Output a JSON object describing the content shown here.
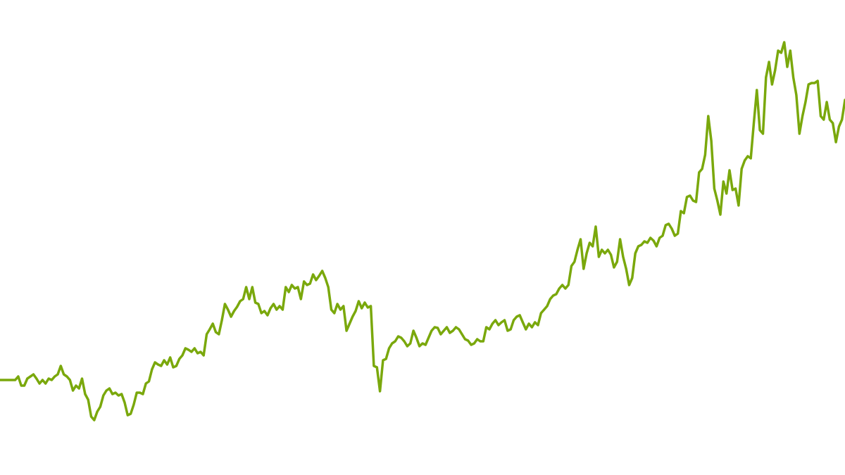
{
  "chart_data": {
    "type": "line",
    "title": "",
    "xlabel": "",
    "ylabel": "",
    "ylim": [
      0,
      135
    ],
    "grid": false,
    "axes_visible": false,
    "legend": "none",
    "series": [
      {
        "color": "#7aa80c",
        "values": [
          27,
          27,
          27,
          27,
          27,
          27,
          28,
          25.4,
          25.4,
          27.4,
          28,
          28.6,
          27.4,
          26,
          27,
          26,
          27.4,
          27,
          28,
          28.6,
          31,
          28.6,
          28,
          27,
          24,
          25.4,
          24.6,
          27.4,
          23,
          21.4,
          16.6,
          15.6,
          18,
          19.4,
          22.6,
          24,
          24.6,
          23,
          23.4,
          22.6,
          23,
          20.6,
          17,
          17.4,
          20,
          23.4,
          23.4,
          23,
          26,
          26.6,
          30,
          32,
          31.4,
          31,
          32.6,
          31.4,
          33.4,
          30.6,
          31,
          33,
          34,
          36,
          35.6,
          35,
          36,
          34.6,
          35,
          34,
          40,
          41.4,
          43,
          40.6,
          40,
          44,
          48.6,
          47,
          45,
          46.6,
          47.8,
          49.4,
          50,
          53.4,
          50,
          53.4,
          49,
          48.6,
          46,
          46.6,
          45.4,
          47.4,
          48.6,
          47,
          48,
          47,
          53.4,
          52,
          54,
          53,
          53.4,
          50,
          55,
          54,
          54.4,
          57,
          55.4,
          56.6,
          58,
          56,
          53.4,
          47,
          46,
          48.6,
          47,
          48,
          41,
          43,
          45,
          46.6,
          49.4,
          47.4,
          49,
          47.6,
          48,
          31,
          30.6,
          23.8,
          32.6,
          33,
          36,
          37.4,
          38,
          39.4,
          39,
          38,
          36.6,
          37.4,
          41,
          39,
          36.6,
          37.4,
          37,
          39,
          41,
          42,
          41.8,
          40,
          41,
          42,
          40.4,
          41,
          42,
          41.4,
          40,
          38.6,
          38.2,
          37,
          37.4,
          38.6,
          38,
          38,
          42,
          41.4,
          43,
          44,
          42.6,
          43.4,
          44,
          41,
          41.4,
          44,
          45,
          45.4,
          43.4,
          41.4,
          43,
          42,
          43.4,
          42.6,
          46,
          47,
          48,
          50,
          51,
          51.4,
          53,
          54,
          53,
          54,
          59.4,
          60.6,
          64,
          67,
          58.6,
          63,
          66,
          65,
          70.6,
          62,
          64,
          63,
          64,
          62.6,
          59,
          60.6,
          67,
          62,
          58.6,
          54,
          56,
          63,
          65,
          65.4,
          66.4,
          66,
          67.4,
          66.6,
          65,
          67.4,
          68,
          71,
          71.4,
          70,
          68,
          68.6,
          75,
          74.4,
          79,
          79.4,
          78,
          77.6,
          86,
          87,
          91,
          102,
          95,
          81.4,
          78,
          74,
          83.4,
          80,
          86.6,
          81,
          81.4,
          76.6,
          87,
          89.4,
          90.6,
          90,
          100,
          109.4,
          98,
          97,
          113,
          117.4,
          111,
          115,
          120.6,
          120,
          123,
          116,
          120.6,
          113,
          108,
          97,
          102,
          106,
          111,
          111.4,
          111.4,
          112,
          102,
          101,
          106,
          101,
          100,
          94.6,
          99,
          101,
          106.6
        ]
      }
    ]
  }
}
